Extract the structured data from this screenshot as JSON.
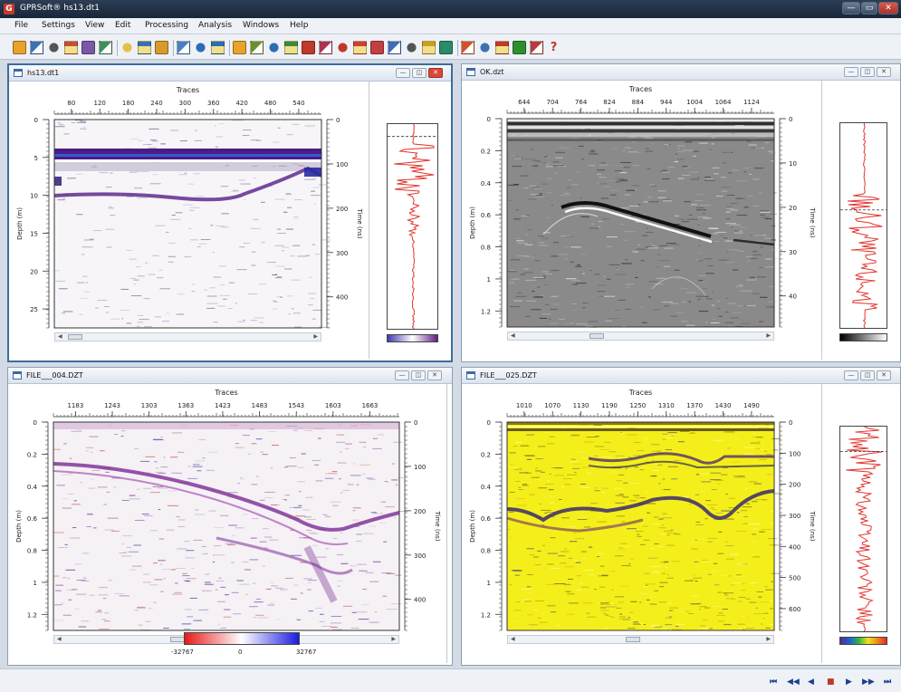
{
  "app": {
    "title": "GPRSoft® hs13.dt1",
    "icon_letter": "G"
  },
  "window_controls": {
    "minimize": "—",
    "maximize": "▭",
    "close": "✕"
  },
  "menu": [
    "File",
    "Settings",
    "View",
    "Edit",
    "Processing",
    "Analysis",
    "Windows",
    "Help"
  ],
  "toolbar_icons": [
    "open-folder-icon",
    "save-icon",
    "print-icon",
    "new-icon",
    "scissors-check-icon",
    "report-icon",
    "notes-icon",
    "layout-split-icon",
    "layout-stack-icon",
    "grid-icon",
    "undo-arrow-icon",
    "redo-arrow-icon",
    "filter-funnel-icon",
    "chart-icon",
    "gain-icon",
    "migrate-icon",
    "velocity-icon",
    "spectrum-icon",
    "hyperbola-icon",
    "bandpass-icon",
    "ruler-icon",
    "stack-icon",
    "cut-icon",
    "measure-icon",
    "refresh-icon",
    "palette-icon",
    "zoom-icon",
    "pick-icon",
    "mountain-icon",
    "export-icon",
    "help-icon"
  ],
  "panels": {
    "p1": {
      "title": "hs13.dt1",
      "axis_title": "Traces",
      "depth_label": "Depth (m)",
      "time_label": "Time (ns)",
      "x_ticks": [
        "80",
        "120",
        "180",
        "240",
        "300",
        "360",
        "420",
        "480",
        "540"
      ],
      "depth_ticks": [
        "0",
        "5",
        "10",
        "15",
        "20",
        "25"
      ],
      "time_ticks": [
        "0",
        "100",
        "200",
        "300",
        "400"
      ]
    },
    "p2": {
      "title": "OK.dzt",
      "axis_title": "Traces",
      "depth_label": "Depth (m)",
      "time_label": "Time (ns)",
      "x_ticks": [
        "644",
        "704",
        "764",
        "824",
        "884",
        "944",
        "1004",
        "1064",
        "1124"
      ],
      "depth_ticks": [
        "0",
        "0.2",
        "0.4",
        "0.6",
        "0.8",
        "1",
        "1.2"
      ],
      "time_ticks": [
        "0",
        "10",
        "20",
        "30",
        "40"
      ]
    },
    "p3": {
      "title": "FILE___004.DZT",
      "axis_title": "Traces",
      "depth_label": "Depth (m)",
      "time_label": "Time (ns)",
      "x_ticks": [
        "1183",
        "1243",
        "1303",
        "1363",
        "1423",
        "1483",
        "1543",
        "1603",
        "1663"
      ],
      "depth_ticks": [
        "0",
        "0.2",
        "0.4",
        "0.6",
        "0.8",
        "1",
        "1.2"
      ],
      "time_ticks": [
        "0",
        "100",
        "200",
        "300",
        "400"
      ],
      "colorbar_labels": [
        "-32767",
        "0",
        "32767"
      ]
    },
    "p4": {
      "title": "FILE___025.DZT",
      "axis_title": "Traces",
      "depth_label": "Depth (m)",
      "time_label": "Time (ns)",
      "x_ticks": [
        "1010",
        "1070",
        "1130",
        "1190",
        "1250",
        "1310",
        "1370",
        "1430",
        "1490"
      ],
      "depth_ticks": [
        "0",
        "0.2",
        "0.4",
        "0.6",
        "0.8",
        "1",
        "1.2"
      ],
      "time_ticks": [
        "0",
        "100",
        "200",
        "300",
        "400",
        "500",
        "600"
      ]
    }
  },
  "panel_buttons": {
    "minimize": "—",
    "restore": "◫",
    "close": "✕"
  },
  "status_nav": [
    "first-icon",
    "prev-fast-icon",
    "prev-icon",
    "stop-icon",
    "play-icon",
    "next-fast-icon",
    "last-icon"
  ],
  "nav_glyphs": {
    "first": "⏮",
    "fast_back": "◀◀",
    "back": "◀",
    "stop": "■",
    "play": "▶",
    "fast_fwd": "▶▶",
    "last": "⏭"
  },
  "colors": {
    "accent": "#3a6d9c",
    "trace": "#e3342f",
    "yellow": "#f5f000",
    "purple": "#6a1a8a"
  }
}
